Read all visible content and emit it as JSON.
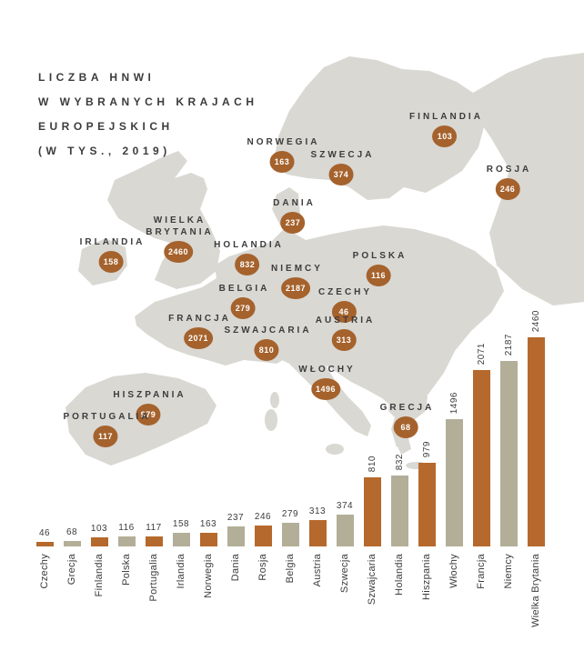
{
  "title": {
    "lines": [
      "LICZBA HNWI",
      "W WYBRANYCH KRAJACH",
      "EUROPEJSKICH",
      "(W TYS., 2019)"
    ]
  },
  "colors": {
    "orange": "#b5692c",
    "tan": "#b3ae98",
    "map": "#d9d8d3",
    "badge": "#a5622c",
    "text": "#3c3c3c"
  },
  "map": {
    "markers": [
      {
        "id": "finlandia",
        "label": "FINLANDIA",
        "value": "103",
        "x": 489,
        "y": 122
      },
      {
        "id": "norwegia",
        "label": "NORWEGIA",
        "value": "163",
        "x": 310,
        "y": 150
      },
      {
        "id": "szwecja",
        "label": "SZWECJA",
        "value": "374",
        "x": 375,
        "y": 164
      },
      {
        "id": "rosja",
        "label": "ROSJA",
        "value": "246",
        "x": 558,
        "y": 180
      },
      {
        "id": "dania",
        "label": "DANIA",
        "value": "237",
        "x": 322,
        "y": 217
      },
      {
        "id": "irlandia",
        "label": "IRLANDIA",
        "value": "158",
        "x": 122,
        "y": 260
      },
      {
        "id": "wielka-brytania",
        "label": "WIELKA\nBRYTANIA",
        "value": "2460",
        "x": 196,
        "y": 236
      },
      {
        "id": "holandia",
        "label": "HOLANDIA",
        "value": "832",
        "x": 272,
        "y": 263
      },
      {
        "id": "niemcy",
        "label": "NIEMCY",
        "value": "2187",
        "x": 325,
        "y": 289
      },
      {
        "id": "polska",
        "label": "POLSKA",
        "value": "116",
        "x": 416,
        "y": 275
      },
      {
        "id": "belgia",
        "label": "BELGIA",
        "value": "279",
        "x": 267,
        "y": 311
      },
      {
        "id": "czechy",
        "label": "CZECHY",
        "value": "46",
        "x": 378,
        "y": 315
      },
      {
        "id": "francja",
        "label": "FRANCJA",
        "value": "2071",
        "x": 218,
        "y": 344
      },
      {
        "id": "szwajcaria",
        "label": "SZWAJCARIA",
        "value": "810",
        "x": 293,
        "y": 357
      },
      {
        "id": "austria",
        "label": "AUSTRIA",
        "value": "313",
        "x": 378,
        "y": 346
      },
      {
        "id": "wlochy",
        "label": "WŁOCHY",
        "value": "1496",
        "x": 358,
        "y": 400
      },
      {
        "id": "hiszpania",
        "label": "HISZPANIA",
        "value": "979",
        "x": 163,
        "y": 428
      },
      {
        "id": "portugalia",
        "label": "PORTUGALIA",
        "value": "117",
        "x": 116,
        "y": 452
      },
      {
        "id": "grecja",
        "label": "GRECJA",
        "value": "68",
        "x": 446,
        "y": 442
      }
    ]
  },
  "chart_data": {
    "type": "bar",
    "title": "LICZBA HNWI W WYBRANYCH KRAJACH EUROPEJSKICH (W TYS., 2019)",
    "categories": [
      "Czechy",
      "Grecja",
      "Finlandia",
      "Polska",
      "Portugalia",
      "Irlandia",
      "Norwegia",
      "Dania",
      "Rosja",
      "Belgia",
      "Austria",
      "Szwecja",
      "Szwajcaria",
      "Holandia",
      "Hiszpania",
      "Włochy",
      "Francja",
      "Niemcy",
      "Wielka Brytania"
    ],
    "values": [
      46,
      68,
      103,
      116,
      117,
      158,
      163,
      237,
      246,
      279,
      313,
      374,
      810,
      832,
      979,
      1496,
      2071,
      2187,
      2460
    ],
    "bar_colors": [
      "orange",
      "tan",
      "orange",
      "tan",
      "orange",
      "tan",
      "orange",
      "tan",
      "orange",
      "tan",
      "orange",
      "tan",
      "orange",
      "tan",
      "orange",
      "tan",
      "orange",
      "tan",
      "orange"
    ],
    "xlabel": "",
    "ylabel": "",
    "ylim": [
      0,
      2460
    ],
    "grid": false,
    "value_labels": true,
    "legend": null
  }
}
